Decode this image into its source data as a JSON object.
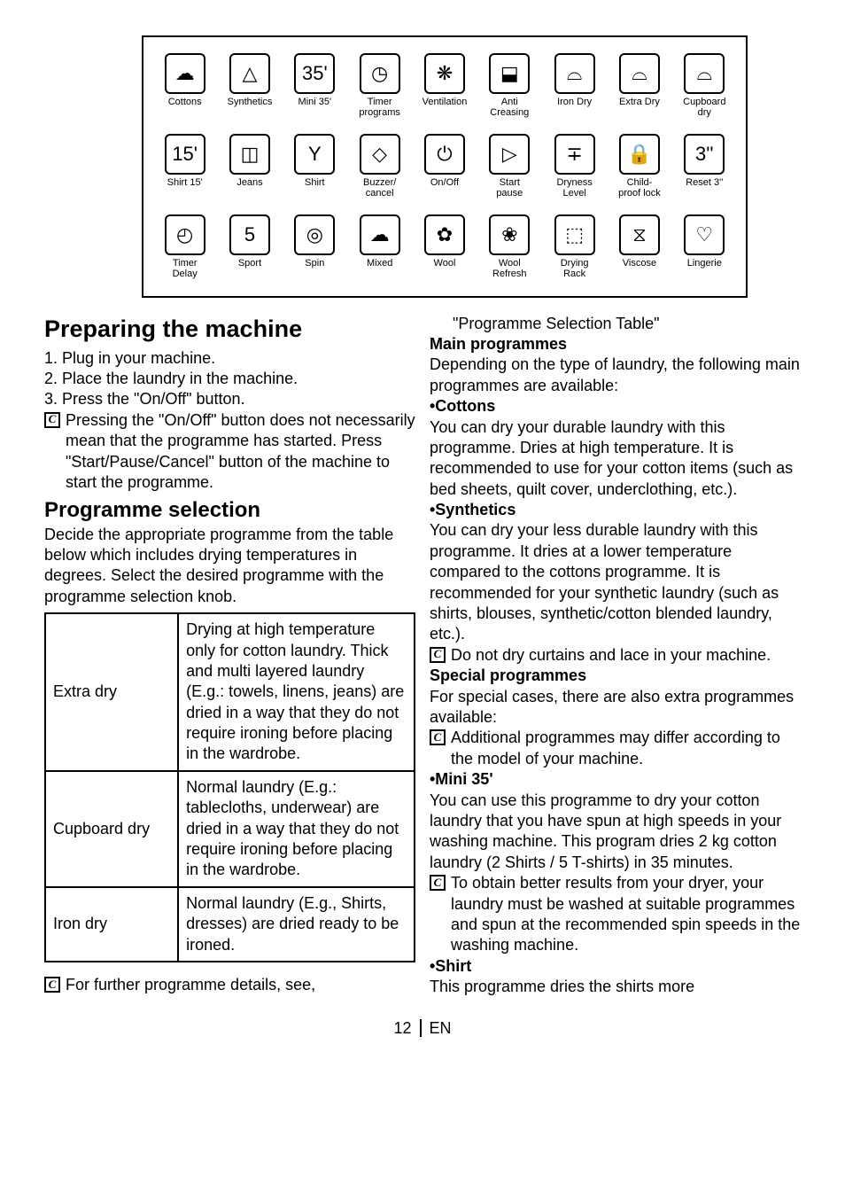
{
  "icons": {
    "row1": [
      {
        "label": "Cottons",
        "glyph": "☁"
      },
      {
        "label": "Synthetics",
        "glyph": "△"
      },
      {
        "label": "Mini 35'",
        "glyph": "35'"
      },
      {
        "label": "Timer programs",
        "glyph": "◷"
      },
      {
        "label": "Ventilation",
        "glyph": "❋"
      },
      {
        "label": "Anti Creasing",
        "glyph": "⬓"
      },
      {
        "label": "Iron Dry",
        "glyph": "⌓"
      },
      {
        "label": "Extra Dry",
        "glyph": "⌓"
      },
      {
        "label": "Cupboard dry",
        "glyph": "⌓"
      }
    ],
    "row2": [
      {
        "label": "Shirt 15'",
        "glyph": "15'"
      },
      {
        "label": "Jeans",
        "glyph": "◫"
      },
      {
        "label": "Shirt",
        "glyph": "Y"
      },
      {
        "label": "Buzzer/ cancel",
        "glyph": "◇"
      },
      {
        "label": "On/Off",
        "glyph": "⏻"
      },
      {
        "label": "Start pause",
        "glyph": "▷"
      },
      {
        "label": "Dryness Level",
        "glyph": "∓"
      },
      {
        "label": "Child-proof lock",
        "glyph": "🔒"
      },
      {
        "label": "Reset 3''",
        "glyph": "3''"
      }
    ],
    "row3": [
      {
        "label": "Timer Delay",
        "glyph": "◴"
      },
      {
        "label": "Sport",
        "glyph": "5"
      },
      {
        "label": "Spin",
        "glyph": "◎"
      },
      {
        "label": "Mixed",
        "glyph": "☁"
      },
      {
        "label": "Wool",
        "glyph": "✿"
      },
      {
        "label": "Wool Refresh",
        "glyph": "❀"
      },
      {
        "label": "Drying Rack",
        "glyph": "⬚"
      },
      {
        "label": "Viscose",
        "glyph": "⧖"
      },
      {
        "label": "Lingerie",
        "glyph": "♡"
      }
    ]
  },
  "left": {
    "h_prepare": "Preparing the machine",
    "steps": [
      "1.  Plug in your machine.",
      "2.  Place the laundry in the machine.",
      "3.  Press the \"On/Off\" button."
    ],
    "c_onoff": "Pressing the \"On/Off\" button does not necessarily mean that the programme has started. Press \"Start/Pause/Cancel\" button of the machine to start the programme.",
    "h_progsel": "Programme selection",
    "progsel_intro": "Decide the appropriate programme from the table below which includes drying temperatures in degrees. Select the desired programme with the programme selection knob.",
    "table": [
      {
        "name": "Extra dry",
        "desc": "Drying at high temperature only for cotton laundry. Thick and multi layered laundry (E.g.: towels, linens, jeans) are dried in a way that they do not require ironing before placing in the wardrobe."
      },
      {
        "name": "Cupboard dry",
        "desc": "Normal laundry (E.g.: tablecloths, underwear) are dried in a way that they do not require ironing before placing in the wardrobe."
      },
      {
        "name": "Iron dry",
        "desc": "Normal laundry (E.g., Shirts, dresses) are dried ready to be ironed."
      }
    ],
    "c_further": "For further programme details, see,"
  },
  "right": {
    "progtable_ref": "\"Programme Selection Table\"",
    "h_main": "Main programmes",
    "main_intro": "Depending on the type of laundry, the following main programmes are available:",
    "h_cottons": "•Cottons",
    "cottons_body": "You can dry your durable laundry with this programme. Dries at high temperature. It is recommended to use for your cotton items (such as bed sheets, quilt cover, underclothing, etc.).",
    "h_synth": "•Synthetics",
    "synth_body": "You can dry your less durable laundry with this programme. It dries at a lower temperature compared to the cottons programme. It is recommended for your synthetic laundry (such as shirts, blouses, synthetic/cotton blended laundry, etc.).",
    "c_curtains": "Do not dry curtains and lace in your machine.",
    "h_special": "Special programmes",
    "special_intro": "For special cases, there are also extra programmes available:",
    "c_additional": "Additional programmes may differ according to the model of your machine.",
    "h_mini": "•Mini 35'",
    "mini_body": "You can use this programme to dry your cotton laundry that you have spun at high speeds in your washing machine. This program dries 2 kg cotton laundry (2 Shirts / 5 T-shirts) in 35 minutes.",
    "c_better": "To obtain better results from your dryer, your laundry must be washed at suitable programmes and spun at the recommended spin speeds in the washing machine.",
    "h_shirt": "•Shirt",
    "shirt_body": "This programme dries the shirts more"
  },
  "footer": {
    "page": "12",
    "lang": "EN"
  }
}
